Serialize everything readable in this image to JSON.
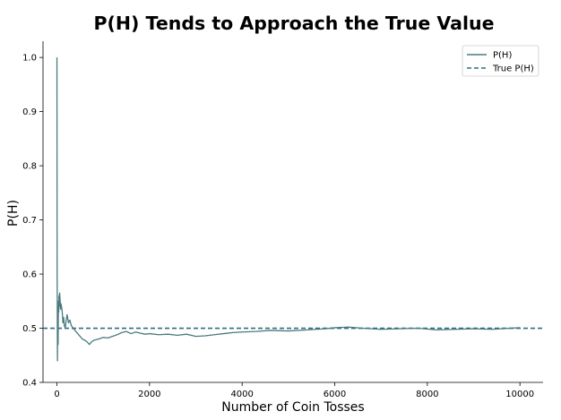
{
  "chart_data": {
    "type": "line",
    "title": "P(H) Tends to Approach the True Value",
    "xlabel": "Number of Coin Tosses",
    "ylabel": "P(H)",
    "xlim": [
      -300,
      10500
    ],
    "ylim": [
      0.4,
      1.03
    ],
    "xticks": [
      0,
      2000,
      4000,
      6000,
      8000,
      10000
    ],
    "xtick_labels": [
      "0",
      "2000",
      "4000",
      "6000",
      "8000",
      "10000"
    ],
    "yticks": [
      0.4,
      0.5,
      0.6,
      0.7,
      0.8,
      0.9,
      1.0
    ],
    "ytick_labels": [
      "0.4",
      "0.5",
      "0.6",
      "0.7",
      "0.8",
      "0.9",
      "1.0"
    ],
    "grid": false,
    "legend_position": "top-right",
    "colors": {
      "series": "#4a7a80",
      "true_line": "#2f6e7d"
    },
    "series": [
      {
        "name": "P(H)",
        "style": "solid",
        "x": [
          1,
          3,
          5,
          7,
          9,
          12,
          15,
          18,
          22,
          26,
          30,
          35,
          40,
          45,
          50,
          60,
          70,
          80,
          90,
          100,
          115,
          130,
          145,
          160,
          180,
          200,
          220,
          250,
          280,
          310,
          350,
          400,
          450,
          500,
          550,
          600,
          650,
          700,
          750,
          800,
          900,
          1000,
          1100,
          1200,
          1300,
          1400,
          1500,
          1600,
          1700,
          1800,
          1900,
          2000,
          2200,
          2400,
          2600,
          2800,
          3000,
          3200,
          3400,
          3600,
          3800,
          4000,
          4300,
          4600,
          5000,
          5400,
          5800,
          6000,
          6300,
          6600,
          7000,
          7400,
          7800,
          8200,
          8600,
          9000,
          9400,
          9800,
          10000
        ],
        "y": [
          1.0,
          0.78,
          0.6,
          0.57,
          0.5,
          0.44,
          0.49,
          0.54,
          0.5,
          0.47,
          0.52,
          0.55,
          0.53,
          0.56,
          0.54,
          0.565,
          0.55,
          0.535,
          0.545,
          0.54,
          0.53,
          0.51,
          0.52,
          0.505,
          0.5,
          0.515,
          0.525,
          0.51,
          0.515,
          0.505,
          0.5,
          0.495,
          0.49,
          0.485,
          0.48,
          0.478,
          0.475,
          0.47,
          0.475,
          0.478,
          0.48,
          0.483,
          0.482,
          0.485,
          0.488,
          0.492,
          0.494,
          0.49,
          0.493,
          0.491,
          0.489,
          0.49,
          0.488,
          0.489,
          0.487,
          0.489,
          0.485,
          0.486,
          0.488,
          0.49,
          0.492,
          0.493,
          0.494,
          0.496,
          0.495,
          0.497,
          0.499,
          0.501,
          0.502,
          0.5,
          0.498,
          0.499,
          0.5,
          0.497,
          0.498,
          0.499,
          0.498,
          0.5,
          0.501
        ]
      },
      {
        "name": "True P(H)",
        "style": "dashed",
        "x": [
          -300,
          10500
        ],
        "y": [
          0.5,
          0.5
        ]
      }
    ]
  }
}
